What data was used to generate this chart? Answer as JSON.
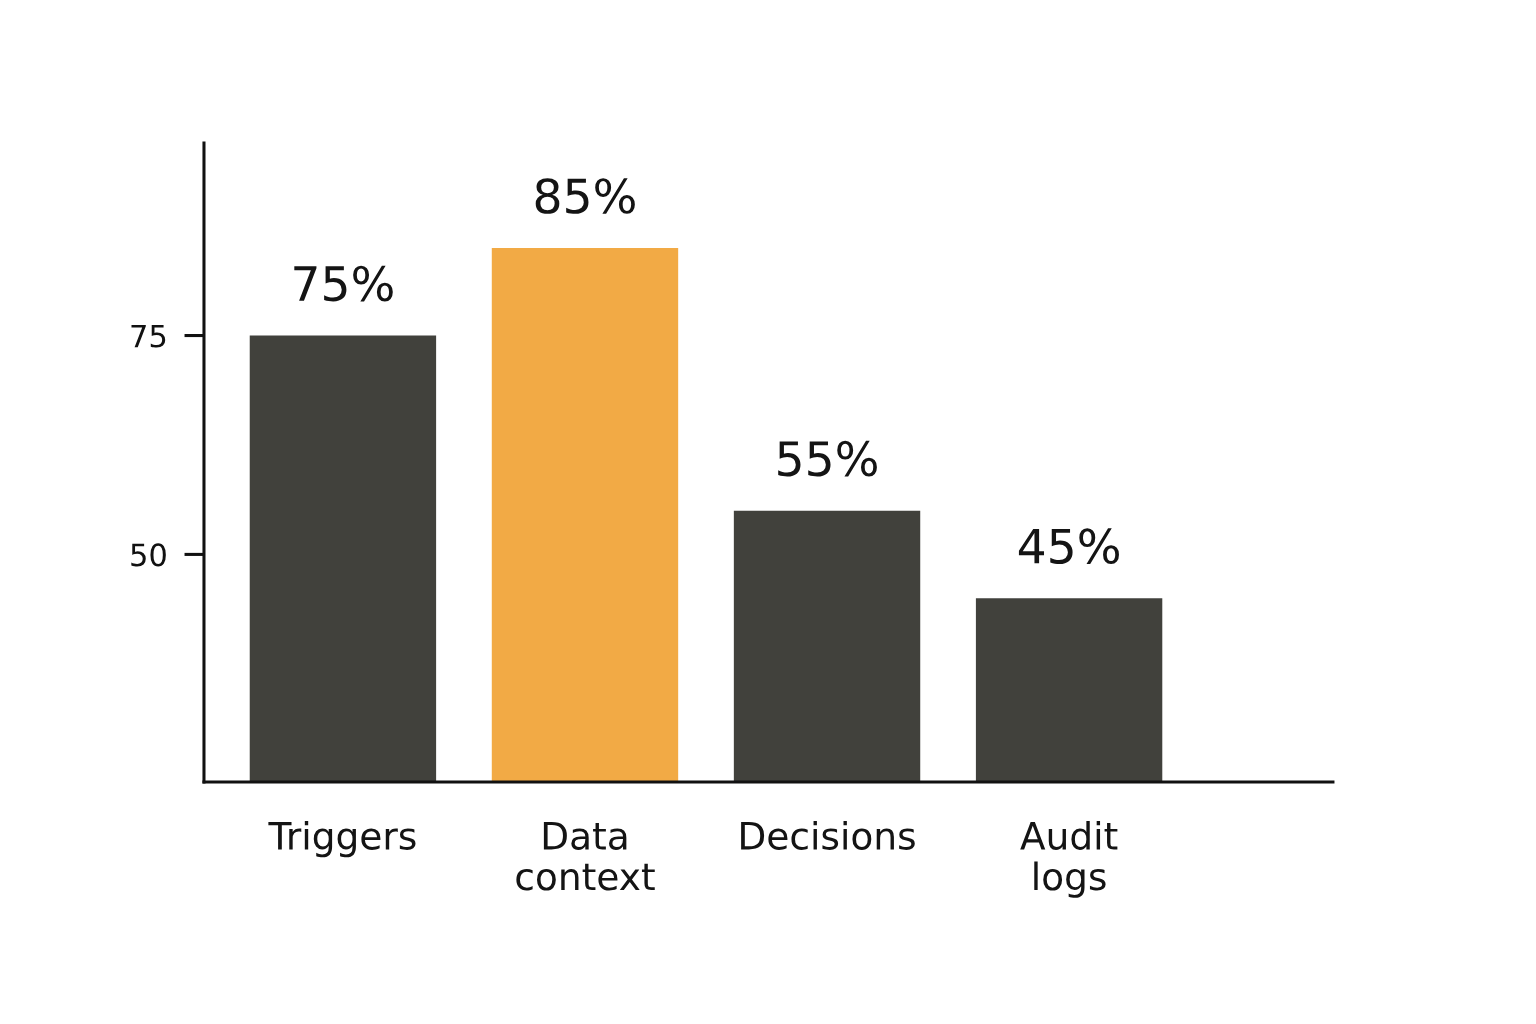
{
  "chart_data": {
    "type": "bar",
    "categories": [
      "Triggers",
      "Data\ncontext",
      "Decisions",
      "Audit\nlogs"
    ],
    "values": [
      75,
      85,
      55,
      45
    ],
    "value_labels": [
      "75%",
      "85%",
      "55%",
      "45%"
    ],
    "colors": [
      "#41413c",
      "#f2aa45",
      "#41413c",
      "#41413c"
    ],
    "ylim": [
      24,
      97
    ],
    "yticks": [
      50,
      75
    ],
    "grid": false,
    "legend": false
  }
}
